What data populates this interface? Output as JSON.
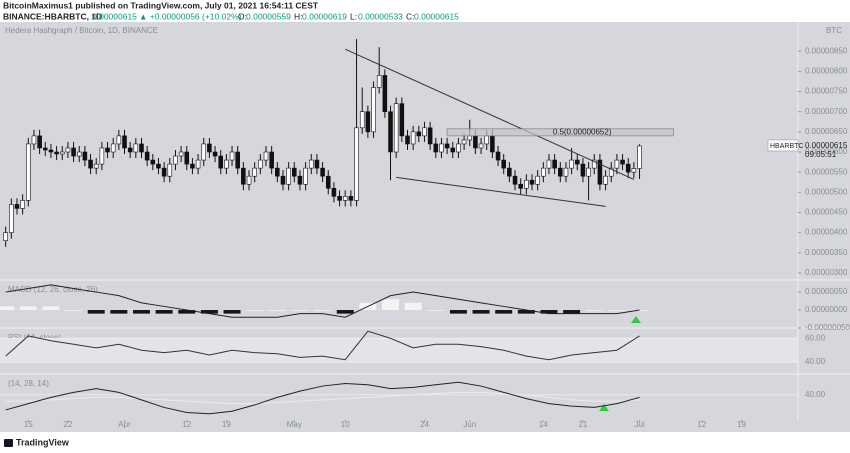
{
  "header": {
    "publisher": "BitcoinMaximus1 published on TradingView.com, July 01, 2021 16:54:11 CEST",
    "symbol": "BINANCE:HBARBTC, 1D",
    "price": "0.00000615",
    "change": "▲ +0.00000056 (+10.02%)",
    "ohlc": [
      {
        "key": "O:",
        "value": "0.00000559"
      },
      {
        "key": "H:",
        "value": "0.00000619"
      },
      {
        "key": "L:",
        "value": "0.00000533"
      },
      {
        "key": "C:",
        "value": "0.00000615"
      }
    ]
  },
  "footer": {
    "brand": "TradingView"
  },
  "chart_data": {
    "type": "candlestick",
    "title": "Hedera Hashgraph / Bitcoin, 1D, BINANCE",
    "currency": "BTC",
    "up_color": "#ffffff",
    "down_color": "#111111",
    "xlim": [
      -1,
      140
    ],
    "xticks": [
      {
        "value": 4,
        "label": "15"
      },
      {
        "value": 11,
        "label": "22"
      },
      {
        "value": 21,
        "label": "Apr"
      },
      {
        "value": 32,
        "label": "12"
      },
      {
        "value": 39,
        "label": "19"
      },
      {
        "value": 51,
        "label": "May"
      },
      {
        "value": 60,
        "label": "10"
      },
      {
        "value": 74,
        "label": "24"
      },
      {
        "value": 82,
        "label": "Jun"
      },
      {
        "value": 95,
        "label": "14"
      },
      {
        "value": 102,
        "label": "21"
      },
      {
        "value": 112,
        "label": "Jul"
      },
      {
        "value": 123,
        "label": "12"
      },
      {
        "value": 130,
        "label": "19"
      }
    ],
    "ylim": [
      2.825e-06,
      9.225e-06
    ],
    "yticks": [
      {
        "value": 8.5e-06,
        "label": "0.00000850"
      },
      {
        "value": 8e-06,
        "label": "0.00000800"
      },
      {
        "value": 7.5e-06,
        "label": "0.00000750"
      },
      {
        "value": 7e-06,
        "label": "0.00000700"
      },
      {
        "value": 6.5e-06,
        "label": "0.00000650"
      },
      {
        "value": 6e-06,
        "label": "0.00000600"
      },
      {
        "value": 5.5e-06,
        "label": "0.00000550"
      },
      {
        "value": 5e-06,
        "label": "0.00000500"
      },
      {
        "value": 4.5e-06,
        "label": "0.00000450"
      },
      {
        "value": 4e-06,
        "label": "0.00000400"
      },
      {
        "value": 3.5e-06,
        "label": "0.00000350"
      },
      {
        "value": 3e-06,
        "label": "0.00000300"
      }
    ],
    "candles": [
      [
        3.8e-06,
        4.15e-06,
        3.65e-06,
        4e-06
      ],
      [
        4e-06,
        4.85e-06,
        3.85e-06,
        4.7e-06
      ],
      [
        4.7e-06,
        4.85e-06,
        4.45e-06,
        4.6e-06
      ],
      [
        4.6e-06,
        4.95e-06,
        4.45e-06,
        4.8e-06
      ],
      [
        4.8e-06,
        6.35e-06,
        4.65e-06,
        6.2e-06
      ],
      [
        6.2e-06,
        6.55e-06,
        6.05e-06,
        6.4e-06
      ],
      [
        6.4e-06,
        6.55e-06,
        5.95e-06,
        6.1e-06
      ],
      [
        6.1e-06,
        6.25e-06,
        5.9e-06,
        6.05e-06
      ],
      [
        6.05e-06,
        6.2e-06,
        5.85e-06,
        6e-06
      ],
      [
        6e-06,
        6.15e-06,
        5.8e-06,
        5.95e-06
      ],
      [
        5.95e-06,
        6.15e-06,
        5.8e-06,
        6e-06
      ],
      [
        6e-06,
        6.25e-06,
        5.85e-06,
        6.1e-06
      ],
      [
        6.1e-06,
        6.25e-06,
        5.75e-06,
        5.9e-06
      ],
      [
        5.9e-06,
        6.15e-06,
        5.75e-06,
        6e-06
      ],
      [
        6e-06,
        6.15e-06,
        5.65e-06,
        5.8e-06
      ],
      [
        5.8e-06,
        5.95e-06,
        5.45e-06,
        5.6e-06
      ],
      [
        5.6e-06,
        5.85e-06,
        5.45e-06,
        5.7e-06
      ],
      [
        5.7e-06,
        6.25e-06,
        5.55e-06,
        6.1e-06
      ],
      [
        6.1e-06,
        6.25e-06,
        5.85e-06,
        6e-06
      ],
      [
        6e-06,
        6.35e-06,
        5.85e-06,
        6.2e-06
      ],
      [
        6.2e-06,
        6.55e-06,
        6.05e-06,
        6.4e-06
      ],
      [
        6.4e-06,
        6.55e-06,
        5.95e-06,
        6.1e-06
      ],
      [
        6.1e-06,
        6.25e-06,
        5.85e-06,
        6e-06
      ],
      [
        6e-06,
        6.35e-06,
        5.85e-06,
        6.2e-06
      ],
      [
        6.2e-06,
        6.35e-06,
        5.85e-06,
        6e-06
      ],
      [
        6e-06,
        6.15e-06,
        5.65e-06,
        5.8e-06
      ],
      [
        5.8e-06,
        5.95e-06,
        5.55e-06,
        5.7e-06
      ],
      [
        5.7e-06,
        5.85e-06,
        5.45e-06,
        5.6e-06
      ],
      [
        5.6e-06,
        5.75e-06,
        5.25e-06,
        5.4e-06
      ],
      [
        5.4e-06,
        5.85e-06,
        5.25e-06,
        5.7e-06
      ],
      [
        5.7e-06,
        6.05e-06,
        5.55e-06,
        5.9e-06
      ],
      [
        5.9e-06,
        6.15e-06,
        5.75e-06,
        6e-06
      ],
      [
        6e-06,
        6.15e-06,
        5.55e-06,
        5.7e-06
      ],
      [
        5.7e-06,
        5.85e-06,
        5.45e-06,
        5.6e-06
      ],
      [
        5.6e-06,
        5.95e-06,
        5.45e-06,
        5.8e-06
      ],
      [
        5.8e-06,
        6.35e-06,
        5.65e-06,
        6.2e-06
      ],
      [
        6.2e-06,
        6.35e-06,
        5.85e-06,
        6e-06
      ],
      [
        6e-06,
        6.15e-06,
        5.75e-06,
        5.9e-06
      ],
      [
        5.9e-06,
        6.05e-06,
        5.45e-06,
        5.6e-06
      ],
      [
        5.6e-06,
        5.95e-06,
        5.45e-06,
        5.8e-06
      ],
      [
        5.8e-06,
        6.15e-06,
        5.65e-06,
        6e-06
      ],
      [
        6e-06,
        6.15e-06,
        5.45e-06,
        5.6e-06
      ],
      [
        5.6e-06,
        5.75e-06,
        5.05e-06,
        5.2e-06
      ],
      [
        5.2e-06,
        5.55e-06,
        5.05e-06,
        5.4e-06
      ],
      [
        5.4e-06,
        5.75e-06,
        5.25e-06,
        5.6e-06
      ],
      [
        5.6e-06,
        5.95e-06,
        5.45e-06,
        5.8e-06
      ],
      [
        5.8e-06,
        6.15e-06,
        5.65e-06,
        6e-06
      ],
      [
        6e-06,
        6.15e-06,
        5.45e-06,
        5.6e-06
      ],
      [
        5.6e-06,
        5.75e-06,
        5.25e-06,
        5.4e-06
      ],
      [
        5.4e-06,
        5.55e-06,
        5.05e-06,
        5.2e-06
      ],
      [
        5.2e-06,
        5.75e-06,
        5.05e-06,
        5.6e-06
      ],
      [
        5.6e-06,
        5.75e-06,
        5.25e-06,
        5.4e-06
      ],
      [
        5.4e-06,
        5.55e-06,
        5.05e-06,
        5.2e-06
      ],
      [
        5.2e-06,
        5.75e-06,
        5.05e-06,
        5.6e-06
      ],
      [
        5.6e-06,
        5.95e-06,
        5.45e-06,
        5.8e-06
      ],
      [
        5.8e-06,
        5.95e-06,
        5.45e-06,
        5.6e-06
      ],
      [
        5.6e-06,
        5.75e-06,
        5.25e-06,
        5.4e-06
      ],
      [
        5.4e-06,
        5.55e-06,
        4.95e-06,
        5.1e-06
      ],
      [
        5.1e-06,
        5.25e-06,
        4.75e-06,
        4.9e-06
      ],
      [
        4.9e-06,
        5.05e-06,
        4.65e-06,
        4.8e-06
      ],
      [
        4.8e-06,
        5.05e-06,
        4.65e-06,
        4.9e-06
      ],
      [
        4.9e-06,
        5.05e-06,
        4.65e-06,
        4.8e-06
      ],
      [
        4.8e-06,
        8.8e-06,
        4.65e-06,
        6.6e-06
      ],
      [
        6.6e-06,
        7.6e-06,
        6.45e-06,
        7e-06
      ],
      [
        7e-06,
        7.15e-06,
        6.35e-06,
        6.5e-06
      ],
      [
        6.5e-06,
        7.75e-06,
        6.35e-06,
        7.6e-06
      ],
      [
        7.6e-06,
        8.6e-06,
        7.45e-06,
        7.9e-06
      ],
      [
        7.9e-06,
        8.05e-06,
        6.85e-06,
        7e-06
      ],
      [
        7e-06,
        7.15e-06,
        5.3e-06,
        6e-06
      ],
      [
        6e-06,
        7.35e-06,
        5.85e-06,
        7.2e-06
      ],
      [
        7.2e-06,
        7.35e-06,
        6.25e-06,
        6.4e-06
      ],
      [
        6.4e-06,
        6.55e-06,
        6.05e-06,
        6.2e-06
      ],
      [
        6.2e-06,
        6.65e-06,
        6.05e-06,
        6.5e-06
      ],
      [
        6.5e-06,
        6.65e-06,
        6.25e-06,
        6.4e-06
      ],
      [
        6.4e-06,
        6.75e-06,
        6.25e-06,
        6.6e-06
      ],
      [
        6.6e-06,
        6.75e-06,
        6.05e-06,
        6.2e-06
      ],
      [
        6.2e-06,
        6.35e-06,
        5.85e-06,
        6e-06
      ],
      [
        6e-06,
        6.35e-06,
        5.85e-06,
        6.2e-06
      ],
      [
        6.2e-06,
        6.35e-06,
        5.95e-06,
        6.1e-06
      ],
      [
        6.1e-06,
        6.25e-06,
        5.85e-06,
        6e-06
      ],
      [
        6e-06,
        6.35e-06,
        5.85e-06,
        6.2e-06
      ],
      [
        6.2e-06,
        6.45e-06,
        6.05e-06,
        6.3e-06
      ],
      [
        6.3e-06,
        6.8e-06,
        6.15e-06,
        6.4e-06
      ],
      [
        6.4e-06,
        6.55e-06,
        5.95e-06,
        6.1e-06
      ],
      [
        6.1e-06,
        6.35e-06,
        5.95e-06,
        6.2e-06
      ],
      [
        6.2e-06,
        6.55e-06,
        6.05e-06,
        6.4e-06
      ],
      [
        6.4e-06,
        6.55e-06,
        5.85e-06,
        6e-06
      ],
      [
        6e-06,
        6.15e-06,
        5.65e-06,
        5.8e-06
      ],
      [
        5.8e-06,
        5.95e-06,
        5.45e-06,
        5.6e-06
      ],
      [
        5.6e-06,
        5.75e-06,
        5.25e-06,
        5.4e-06
      ],
      [
        5.4e-06,
        5.55e-06,
        5.05e-06,
        5.2e-06
      ],
      [
        5.2e-06,
        5.35e-06,
        4.95e-06,
        5.1e-06
      ],
      [
        5.1e-06,
        5.45e-06,
        4.95e-06,
        5.3e-06
      ],
      [
        5.3e-06,
        5.45e-06,
        5.05e-06,
        5.2e-06
      ],
      [
        5.2e-06,
        5.55e-06,
        5.05e-06,
        5.4e-06
      ],
      [
        5.4e-06,
        5.75e-06,
        5.25e-06,
        5.6e-06
      ],
      [
        5.6e-06,
        5.95e-06,
        5.45e-06,
        5.8e-06
      ],
      [
        5.8e-06,
        5.95e-06,
        5.45e-06,
        5.6e-06
      ],
      [
        5.6e-06,
        5.75e-06,
        5.25e-06,
        5.4e-06
      ],
      [
        5.4e-06,
        5.75e-06,
        5.25e-06,
        5.6e-06
      ],
      [
        5.6e-06,
        6.1e-06,
        5.45e-06,
        5.8e-06
      ],
      [
        5.8e-06,
        5.95e-06,
        5.55e-06,
        5.7e-06
      ],
      [
        5.7e-06,
        5.85e-06,
        5.25e-06,
        5.4e-06
      ],
      [
        5.4e-06,
        5.75e-06,
        4.8e-06,
        5.6e-06
      ],
      [
        5.6e-06,
        5.95e-06,
        5.45e-06,
        5.8e-06
      ],
      [
        5.8e-06,
        5.95e-06,
        5.05e-06,
        5.2e-06
      ],
      [
        5.2e-06,
        5.55e-06,
        5.05e-06,
        5.4e-06
      ],
      [
        5.4e-06,
        5.75e-06,
        5.25e-06,
        5.6e-06
      ],
      [
        5.6e-06,
        5.95e-06,
        5.45e-06,
        5.8e-06
      ],
      [
        5.8e-06,
        5.95e-06,
        5.55e-06,
        5.7e-06
      ],
      [
        5.7e-06,
        5.85e-06,
        5.35e-06,
        5.5e-06
      ],
      [
        5.5e-06,
        5.75e-06,
        5.35e-06,
        5.59e-06
      ],
      [
        5.59e-06,
        6.19e-06,
        5.33e-06,
        6.15e-06
      ]
    ],
    "trendlines": [
      {
        "x": [
          60,
          111
        ],
        "y": [
          8.55e-06,
          5.32e-06
        ]
      },
      {
        "x": [
          69,
          106
        ],
        "y": [
          5.37e-06,
          4.65e-06
        ]
      }
    ],
    "fib_box": {
      "x": [
        78,
        118
      ],
      "y": [
        6.4e-06,
        6.575e-06
      ],
      "label": "0.5(0.00000652)"
    },
    "price_tag": {
      "symbol": "HBARBTC",
      "price": {
        "value": 6.15e-06,
        "label": "0.00000615"
      },
      "countdown": "09:05:51"
    },
    "indicators": [
      {
        "type": "macd",
        "name": "MACD (12, 26, close, 26)",
        "ylim": [
          -5e-07,
          7.8e-07
        ],
        "yticks": [
          {
            "value": 5e-07,
            "label": "0.00000050"
          },
          {
            "value": 0,
            "label": "0.00000000"
          },
          {
            "value": -5e-07,
            "label": "-0.00000050"
          }
        ],
        "x": [
          0,
          4,
          8,
          12,
          16,
          20,
          24,
          28,
          32,
          36,
          40,
          44,
          48,
          52,
          56,
          60,
          64,
          68,
          72,
          76,
          80,
          84,
          88,
          92,
          96,
          100,
          104,
          108,
          112
        ],
        "series": [
          {
            "type": "histogram",
            "up_color": "#f4f4f4",
            "down_color": "#151515",
            "values": [
              1e-07,
              1e-07,
              1e-07,
              0,
              -1e-07,
              -1e-07,
              -1e-07,
              -1e-07,
              -1e-07,
              -1e-07,
              -1e-07,
              0,
              0,
              0,
              0,
              -1e-07,
              2e-07,
              3e-07,
              2e-07,
              0,
              -1e-07,
              -1e-07,
              -1e-07,
              -1e-07,
              -1e-07,
              -1e-07,
              0,
              0,
              0
            ]
          },
          {
            "type": "line",
            "color": "#222222",
            "values": [
              5e-07,
              6e-07,
              7e-07,
              6e-07,
              5e-07,
              4e-07,
              2e-07,
              1e-07,
              0,
              -1e-07,
              -2e-07,
              -2e-07,
              -2e-07,
              -1e-07,
              -1e-07,
              -2e-07,
              1e-07,
              4e-07,
              5e-07,
              4e-07,
              3e-07,
              2e-07,
              1e-07,
              0,
              -1e-07,
              -1e-07,
              -1e-07,
              -1e-07,
              0
            ]
          }
        ]
      },
      {
        "type": "rsi",
        "name": "RSI (14, close)",
        "ylim": [
          30,
          67
        ],
        "yticks": [
          {
            "value": 60,
            "label": "60.00"
          },
          {
            "value": 40,
            "label": "40.00"
          }
        ],
        "x": [
          0,
          4,
          8,
          12,
          16,
          20,
          24,
          28,
          32,
          36,
          40,
          44,
          48,
          52,
          56,
          60,
          64,
          68,
          72,
          76,
          80,
          84,
          88,
          92,
          96,
          100,
          104,
          108,
          112
        ],
        "series": [
          {
            "type": "line",
            "color": "#333333",
            "values": [
              45,
              62,
              58,
              55,
              52,
              55,
              50,
              48,
              50,
              46,
              50,
              48,
              47,
              44,
              45,
              42,
              66,
              60,
              52,
              55,
              55,
              53,
              50,
              45,
              42,
              46,
              48,
              50,
              62
            ]
          }
        ]
      },
      {
        "type": "oscillator",
        "name": "(14, 28, 14)",
        "ylim": [
          20,
          55
        ],
        "yticks": [
          {
            "value": 40,
            "label": "40.00"
          }
        ],
        "x": [
          0,
          4,
          8,
          12,
          16,
          20,
          24,
          28,
          32,
          36,
          40,
          44,
          48,
          52,
          56,
          60,
          64,
          68,
          72,
          76,
          80,
          84,
          88,
          92,
          96,
          100,
          104,
          108,
          112
        ],
        "series": [
          {
            "type": "line",
            "color": "#ececec",
            "values": [
              35,
              35,
              36,
              37,
              38,
              38,
              37,
              36,
              35,
              34,
              33,
              33,
              34,
              35,
              36,
              37,
              38,
              39,
              40,
              41,
              42,
              42,
              41,
              40,
              38,
              36,
              35,
              35,
              36
            ]
          },
          {
            "type": "line",
            "color": "#222222",
            "values": [
              28,
              33,
              38,
              42,
              45,
              42,
              36,
              30,
              26,
              25,
              27,
              32,
              38,
              43,
              47,
              49,
              48,
              45,
              46,
              48,
              50,
              47,
              42,
              37,
              33,
              31,
              30,
              33,
              38
            ]
          }
        ]
      }
    ]
  }
}
